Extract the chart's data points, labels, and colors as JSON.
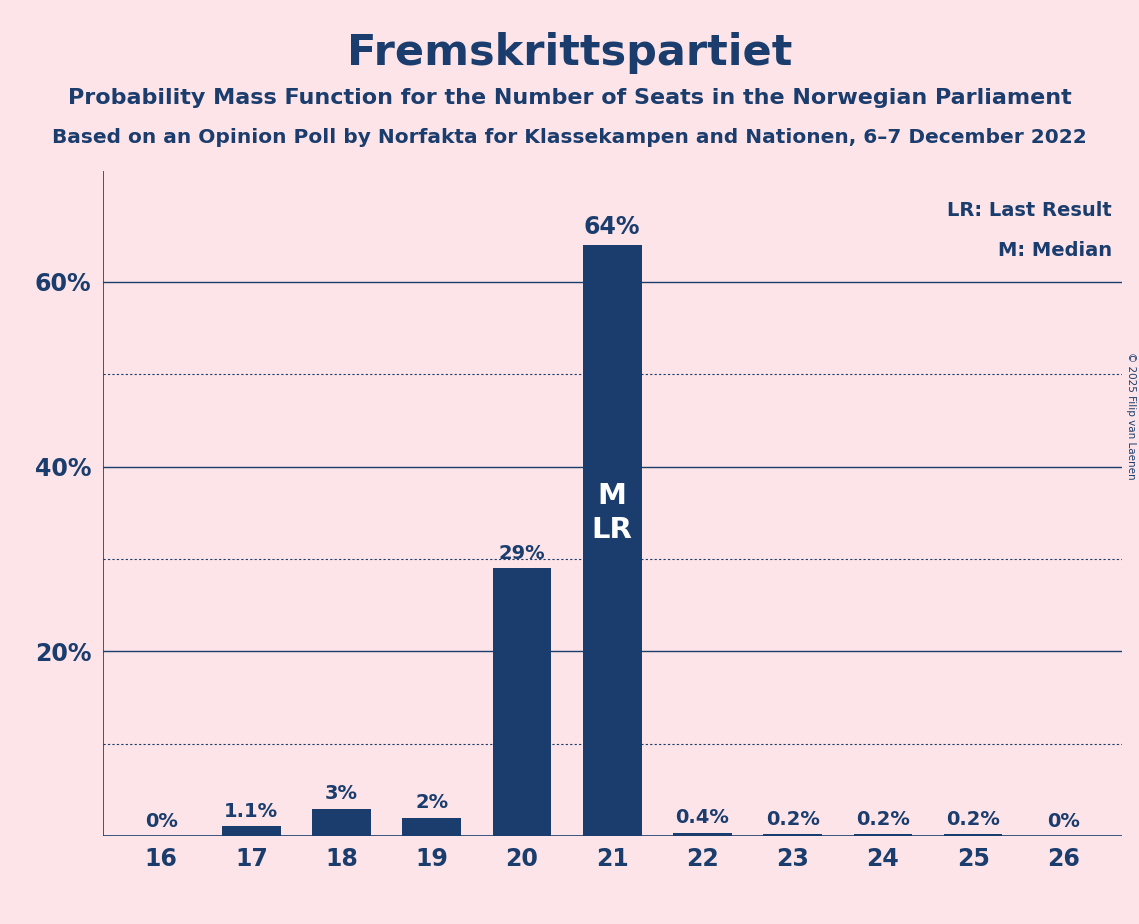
{
  "title": "Fremskrittspartiet",
  "subtitle1": "Probability Mass Function for the Number of Seats in the Norwegian Parliament",
  "subtitle2": "Based on an Opinion Poll by Norfakta for Klassekampen and Nationen, 6–7 December 2022",
  "copyright": "© 2025 Filip van Laenen",
  "categories": [
    16,
    17,
    18,
    19,
    20,
    21,
    22,
    23,
    24,
    25,
    26
  ],
  "values": [
    0.0,
    1.1,
    3.0,
    2.0,
    29.0,
    64.0,
    0.4,
    0.2,
    0.2,
    0.2,
    0.0
  ],
  "bar_labels": [
    "0%",
    "1.1%",
    "3%",
    "2%",
    "29%",
    "64%",
    "0.4%",
    "0.2%",
    "0.2%",
    "0.2%",
    "0%"
  ],
  "median_bar_index": 5,
  "lr_bar_index": 5,
  "bar_color": "#1b3d6e",
  "bg_color": "#fce4e8",
  "title_color": "#1b3d6e",
  "text_color": "#1b3d6e",
  "bar_label_color_outside": "#1b3d6e",
  "ylim": [
    0,
    72
  ],
  "ytick_show": [
    20,
    40,
    60
  ],
  "solid_yticks": [
    0,
    20,
    40,
    60
  ],
  "dotted_yticks": [
    10,
    30,
    50
  ],
  "legend_lr": "LR: Last Result",
  "legend_m": "M: Median"
}
